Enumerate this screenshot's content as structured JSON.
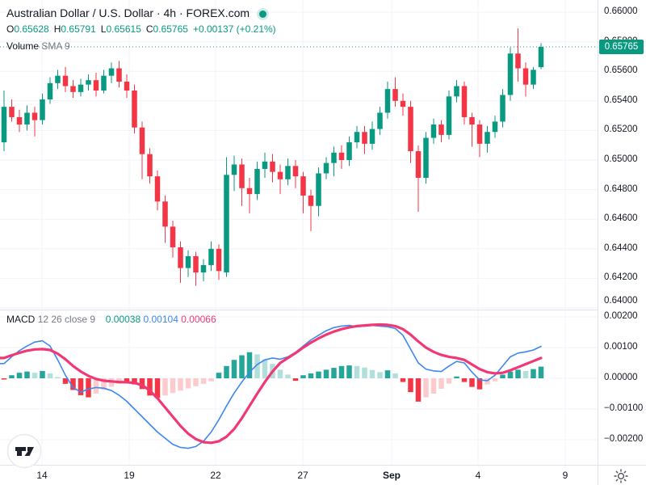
{
  "header": {
    "title": "Australian Dollar / U.S. Dollar · 4h · FOREX.com",
    "market_status": "open",
    "ohlc": {
      "o": "O",
      "ov": "0.65628",
      "h": "H",
      "hv": "0.65791",
      "l": "L",
      "lv": "0.65615",
      "c": "C",
      "cv": "0.65765",
      "chg": "+0.00137 (+0.21%)"
    },
    "volume": {
      "label": "Volume",
      "params": "SMA 9"
    }
  },
  "macd_header": {
    "label": "MACD",
    "params": "12 26 close 9",
    "hist_value": "0.00038",
    "macd_value": "0.00104",
    "signal_value": "0.00066"
  },
  "price_label": {
    "text": "0.65765"
  },
  "colors": {
    "up": "#089981",
    "down": "#f23645",
    "hist_up_strong": "#26a69a",
    "hist_up_weak": "#b2dfdb",
    "hist_down_strong": "#f23645",
    "hist_down_weak": "#fccbcd",
    "macd_line": "#3d87f0",
    "signal_line": "#f23874",
    "grid": "#f0f3fa",
    "axis_border": "#e0e3eb",
    "text_dark": "#131722",
    "text_gray": "#787b86",
    "price_line": "#089981",
    "badge_bg": "#089981"
  },
  "chart_data": [
    {
      "type": "candlestick",
      "title": "Australian Dollar / U.S. Dollar, 4h, FOREX.com",
      "ylim": [
        0.64,
        0.66082
      ],
      "current_price": 0.65765,
      "y_ticks": [
        {
          "label": "0.66000",
          "value": 0.66
        },
        {
          "label": "0.65800",
          "value": 0.658
        },
        {
          "label": "0.65600",
          "value": 0.656
        },
        {
          "label": "0.65400",
          "value": 0.654
        },
        {
          "label": "0.65200",
          "value": 0.652
        },
        {
          "label": "0.65000",
          "value": 0.65
        },
        {
          "label": "0.64800",
          "value": 0.648
        },
        {
          "label": "0.64600",
          "value": 0.646
        },
        {
          "label": "0.64400",
          "value": 0.644
        },
        {
          "label": "0.64200",
          "value": 0.642
        },
        {
          "label": "0.64000",
          "value": 0.64
        }
      ],
      "x_ticks": [
        {
          "label": "14",
          "x": 52
        },
        {
          "label": "19",
          "x": 160
        },
        {
          "label": "22",
          "x": 267
        },
        {
          "label": "27",
          "x": 375
        },
        {
          "label": "Sep",
          "x": 485,
          "strong": true
        },
        {
          "label": "4",
          "x": 592
        },
        {
          "label": "9",
          "x": 700
        }
      ],
      "candles": [
        [
          0.6512,
          0.6547,
          0.6506,
          0.6536
        ],
        [
          0.6536,
          0.6541,
          0.6526,
          0.6529
        ],
        [
          0.6529,
          0.6534,
          0.6519,
          0.6524
        ],
        [
          0.6524,
          0.6537,
          0.652,
          0.6532
        ],
        [
          0.6532,
          0.6536,
          0.6516,
          0.6527
        ],
        [
          0.6527,
          0.6545,
          0.6524,
          0.6541
        ],
        [
          0.6541,
          0.6556,
          0.6538,
          0.6552
        ],
        [
          0.6552,
          0.6561,
          0.6548,
          0.6557
        ],
        [
          0.6557,
          0.6563,
          0.6546,
          0.655
        ],
        [
          0.655,
          0.6554,
          0.6542,
          0.6546
        ],
        [
          0.6546,
          0.6555,
          0.6543,
          0.6551
        ],
        [
          0.6551,
          0.6558,
          0.6547,
          0.6554
        ],
        [
          0.6554,
          0.6559,
          0.6543,
          0.6547
        ],
        [
          0.6547,
          0.6561,
          0.6545,
          0.6557
        ],
        [
          0.6557,
          0.6566,
          0.6552,
          0.6562
        ],
        [
          0.6562,
          0.6567,
          0.6549,
          0.6553
        ],
        [
          0.6553,
          0.6558,
          0.6542,
          0.6547
        ],
        [
          0.6547,
          0.6551,
          0.6518,
          0.6522
        ],
        [
          0.6522,
          0.6526,
          0.6487,
          0.6504
        ],
        [
          0.6504,
          0.6508,
          0.6484,
          0.6489
        ],
        [
          0.6489,
          0.6493,
          0.6466,
          0.6472
        ],
        [
          0.6472,
          0.6476,
          0.6444,
          0.6455
        ],
        [
          0.6455,
          0.6459,
          0.6434,
          0.6441
        ],
        [
          0.6441,
          0.6445,
          0.6417,
          0.6427
        ],
        [
          0.6427,
          0.6439,
          0.6421,
          0.6435
        ],
        [
          0.6435,
          0.6438,
          0.6415,
          0.6424
        ],
        [
          0.6424,
          0.6433,
          0.6418,
          0.6429
        ],
        [
          0.6429,
          0.6445,
          0.6425,
          0.644
        ],
        [
          0.644,
          0.6443,
          0.6419,
          0.6425
        ],
        [
          0.6424,
          0.6502,
          0.6421,
          0.649
        ],
        [
          0.649,
          0.6503,
          0.6479,
          0.6497
        ],
        [
          0.6497,
          0.6501,
          0.6469,
          0.6481
        ],
        [
          0.6481,
          0.6488,
          0.6464,
          0.6477
        ],
        [
          0.6477,
          0.6499,
          0.6473,
          0.6494
        ],
        [
          0.6494,
          0.6505,
          0.6488,
          0.6499
        ],
        [
          0.6499,
          0.6504,
          0.6485,
          0.6492
        ],
        [
          0.6492,
          0.6497,
          0.6477,
          0.6487
        ],
        [
          0.6487,
          0.6501,
          0.6483,
          0.6496
        ],
        [
          0.6496,
          0.65,
          0.6481,
          0.6489
        ],
        [
          0.6489,
          0.6492,
          0.6464,
          0.6476
        ],
        [
          0.6476,
          0.648,
          0.6452,
          0.6469
        ],
        [
          0.6469,
          0.6495,
          0.6462,
          0.6491
        ],
        [
          0.6491,
          0.6502,
          0.6487,
          0.6498
        ],
        [
          0.6498,
          0.6509,
          0.6489,
          0.6505
        ],
        [
          0.6505,
          0.651,
          0.6494,
          0.65
        ],
        [
          0.65,
          0.6516,
          0.6496,
          0.6512
        ],
        [
          0.6512,
          0.6523,
          0.6508,
          0.6519
        ],
        [
          0.6519,
          0.6523,
          0.6504,
          0.6511
        ],
        [
          0.6511,
          0.6526,
          0.6507,
          0.6521
        ],
        [
          0.6521,
          0.6536,
          0.6517,
          0.6532
        ],
        [
          0.6532,
          0.6553,
          0.6528,
          0.6548
        ],
        [
          0.6548,
          0.6556,
          0.6536,
          0.654
        ],
        [
          0.654,
          0.6545,
          0.653,
          0.6536
        ],
        [
          0.6536,
          0.654,
          0.6498,
          0.6506
        ],
        [
          0.6506,
          0.651,
          0.6465,
          0.6488
        ],
        [
          0.6488,
          0.6519,
          0.6484,
          0.6515
        ],
        [
          0.6515,
          0.6528,
          0.6511,
          0.6524
        ],
        [
          0.6524,
          0.6527,
          0.6512,
          0.6517
        ],
        [
          0.6517,
          0.6547,
          0.6514,
          0.6543
        ],
        [
          0.6543,
          0.6554,
          0.6539,
          0.655
        ],
        [
          0.655,
          0.6553,
          0.6524,
          0.6529
        ],
        [
          0.6529,
          0.6532,
          0.6509,
          0.6524
        ],
        [
          0.6524,
          0.6527,
          0.6502,
          0.6511
        ],
        [
          0.6511,
          0.6523,
          0.6505,
          0.6519
        ],
        [
          0.6519,
          0.653,
          0.6515,
          0.6526
        ],
        [
          0.6526,
          0.6548,
          0.6522,
          0.6544
        ],
        [
          0.6544,
          0.6576,
          0.654,
          0.6572
        ],
        [
          0.6572,
          0.6589,
          0.6553,
          0.6562
        ],
        [
          0.6562,
          0.6566,
          0.6543,
          0.6551
        ],
        [
          0.6551,
          0.6563,
          0.6548,
          0.6561
        ],
        [
          0.65628,
          0.65791,
          0.65615,
          0.65765
        ]
      ]
    },
    {
      "type": "macd",
      "params": "12 26 close 9",
      "ylim": [
        -0.0025,
        0.00225
      ],
      "y_ticks": [
        {
          "label": "0.00200",
          "value": 0.002
        },
        {
          "label": "0.00100",
          "value": 0.001
        },
        {
          "label": "0.00000",
          "value": 0.0
        },
        {
          "label": "−0.00100",
          "value": -0.001
        },
        {
          "label": "−0.00200",
          "value": -0.002
        }
      ],
      "histogram": [
        [
          -4e-05,
          "d"
        ],
        [
          0.0001,
          "d"
        ],
        [
          0.00018,
          "d"
        ],
        [
          0.00022,
          "d"
        ],
        [
          0.00018,
          "l"
        ],
        [
          0.00024,
          "d"
        ],
        [
          0.00016,
          "l"
        ],
        [
          4e-05,
          "l"
        ],
        [
          -0.00018,
          "d"
        ],
        [
          -0.00038,
          "d"
        ],
        [
          -0.00055,
          "d"
        ],
        [
          -0.00062,
          "d"
        ],
        [
          -0.0005,
          "l"
        ],
        [
          -0.00038,
          "l"
        ],
        [
          -0.00028,
          "l"
        ],
        [
          -0.00018,
          "l"
        ],
        [
          -0.00013,
          "d"
        ],
        [
          -0.0002,
          "d"
        ],
        [
          -0.00035,
          "d"
        ],
        [
          -0.00056,
          "d"
        ],
        [
          -0.00064,
          "d"
        ],
        [
          -0.00056,
          "l"
        ],
        [
          -0.00048,
          "l"
        ],
        [
          -0.0004,
          "l"
        ],
        [
          -0.00033,
          "l"
        ],
        [
          -0.00026,
          "l"
        ],
        [
          -0.00018,
          "l"
        ],
        [
          -0.0001,
          "l"
        ],
        [
          0.00018,
          "d"
        ],
        [
          0.0004,
          "d"
        ],
        [
          0.0006,
          "d"
        ],
        [
          0.00075,
          "d"
        ],
        [
          0.00085,
          "d"
        ],
        [
          0.00078,
          "l"
        ],
        [
          0.00062,
          "l"
        ],
        [
          0.00047,
          "l"
        ],
        [
          0.00028,
          "l"
        ],
        [
          0.00012,
          "l"
        ],
        [
          -8e-05,
          "d"
        ],
        [
          0.0001,
          "d"
        ],
        [
          0.00016,
          "d"
        ],
        [
          0.00022,
          "d"
        ],
        [
          0.00028,
          "d"
        ],
        [
          0.00034,
          "d"
        ],
        [
          0.0004,
          "d"
        ],
        [
          0.00042,
          "d"
        ],
        [
          0.0004,
          "l"
        ],
        [
          0.00035,
          "l"
        ],
        [
          0.00027,
          "l"
        ],
        [
          0.0002,
          "l"
        ],
        [
          0.00026,
          "d"
        ],
        [
          0.00016,
          "l"
        ],
        [
          -0.00012,
          "d"
        ],
        [
          -0.00045,
          "d"
        ],
        [
          -0.00076,
          "d"
        ],
        [
          -0.00062,
          "l"
        ],
        [
          -0.0005,
          "l"
        ],
        [
          -0.00034,
          "l"
        ],
        [
          -0.00017,
          "l"
        ],
        [
          6e-05,
          "d"
        ],
        [
          -0.00012,
          "d"
        ],
        [
          -0.00028,
          "d"
        ],
        [
          -0.00036,
          "d"
        ],
        [
          -0.0002,
          "l"
        ],
        [
          -0.0001,
          "l"
        ],
        [
          0.00012,
          "d"
        ],
        [
          0.00022,
          "d"
        ],
        [
          0.00028,
          "d"
        ],
        [
          0.00024,
          "l"
        ],
        [
          0.0003,
          "d"
        ],
        [
          0.00038,
          "d"
        ]
      ],
      "macd_line": [
        0.00048,
        0.0007,
        0.0009,
        0.00105,
        0.00118,
        0.00122,
        0.00105,
        0.0006,
        0.0001,
        -0.0003,
        -0.00045,
        -0.00035,
        -0.0003,
        -0.00032,
        -0.0004,
        -0.00055,
        -0.00075,
        -0.001,
        -0.00125,
        -0.0015,
        -0.00175,
        -0.00195,
        -0.00215,
        -0.00225,
        -0.00228,
        -0.00222,
        -0.00205,
        -0.00175,
        -0.00135,
        -0.0009,
        -0.00048,
        -0.00012,
        0.0002,
        0.00045,
        0.0006,
        0.00066,
        0.00062,
        0.0007,
        0.00085,
        0.00105,
        0.00125,
        0.0014,
        0.00155,
        0.00165,
        0.0017,
        0.00172,
        0.00168,
        0.0017,
        0.00172,
        0.0017,
        0.00168,
        0.00162,
        0.0014,
        0.00095,
        0.0005,
        0.0003,
        0.00024,
        0.00022,
        0.0004,
        0.00055,
        0.0005,
        0.0002,
        -5e-05,
        -8e-05,
        0.0001,
        0.0004,
        0.0007,
        0.00082,
        0.00086,
        0.00092,
        0.00104
      ],
      "signal_line": [
        0.00066,
        0.00075,
        0.00083,
        0.0009,
        0.00094,
        0.00095,
        0.00092,
        0.0008,
        0.00062,
        0.0004,
        0.00022,
        8e-05,
        -2e-05,
        -8e-05,
        -0.0001,
        -0.00012,
        -0.00013,
        -0.00015,
        -0.00022,
        -0.0004,
        -0.00065,
        -0.00095,
        -0.00125,
        -0.00155,
        -0.0018,
        -0.00198,
        -0.00208,
        -0.0021,
        -0.00205,
        -0.0019,
        -0.00165,
        -0.0013,
        -0.0009,
        -0.0005,
        -0.00012,
        0.00022,
        0.0005,
        0.00066,
        0.00082,
        0.001,
        0.00116,
        0.0013,
        0.00142,
        0.00152,
        0.0016,
        0.00166,
        0.0017,
        0.00172,
        0.00174,
        0.00175,
        0.00174,
        0.0017,
        0.0016,
        0.00142,
        0.0012,
        0.001,
        0.00086,
        0.00076,
        0.0007,
        0.00066,
        0.0006,
        0.00045,
        0.0003,
        0.0002,
        0.00016,
        0.00018,
        0.00026,
        0.00036,
        0.00046,
        0.00056,
        0.00066
      ]
    }
  ]
}
